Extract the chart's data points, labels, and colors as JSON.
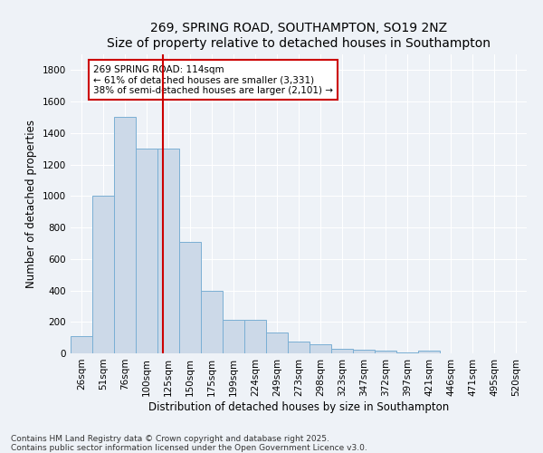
{
  "title": "269, SPRING ROAD, SOUTHAMPTON, SO19 2NZ",
  "subtitle": "Size of property relative to detached houses in Southampton",
  "xlabel": "Distribution of detached houses by size in Southampton",
  "ylabel": "Number of detached properties",
  "categories": [
    "26sqm",
    "51sqm",
    "76sqm",
    "100sqm",
    "125sqm",
    "150sqm",
    "175sqm",
    "199sqm",
    "224sqm",
    "249sqm",
    "273sqm",
    "298sqm",
    "323sqm",
    "347sqm",
    "372sqm",
    "397sqm",
    "421sqm",
    "446sqm",
    "471sqm",
    "495sqm",
    "520sqm"
  ],
  "values": [
    110,
    1000,
    1500,
    1300,
    1300,
    710,
    400,
    215,
    215,
    135,
    75,
    60,
    30,
    25,
    15,
    5,
    15,
    0,
    0,
    0,
    0
  ],
  "bar_color": "#ccd9e8",
  "bar_edge_color": "#7aafd4",
  "vline_x": 3.75,
  "vline_color": "#cc0000",
  "annotation_text": "269 SPRING ROAD: 114sqm\n← 61% of detached houses are smaller (3,331)\n38% of semi-detached houses are larger (2,101) →",
  "annotation_box_color": "#ffffff",
  "annotation_box_edge": "#cc0000",
  "ylim": [
    0,
    1900
  ],
  "yticks": [
    0,
    200,
    400,
    600,
    800,
    1000,
    1200,
    1400,
    1600,
    1800
  ],
  "background_color": "#eef2f7",
  "grid_color": "#ffffff",
  "footer_text": "Contains HM Land Registry data © Crown copyright and database right 2025.\nContains public sector information licensed under the Open Government Licence v3.0.",
  "title_fontsize": 10,
  "xlabel_fontsize": 8.5,
  "ylabel_fontsize": 8.5,
  "tick_fontsize": 7.5,
  "footer_fontsize": 6.5,
  "ann_fontsize": 7.5
}
